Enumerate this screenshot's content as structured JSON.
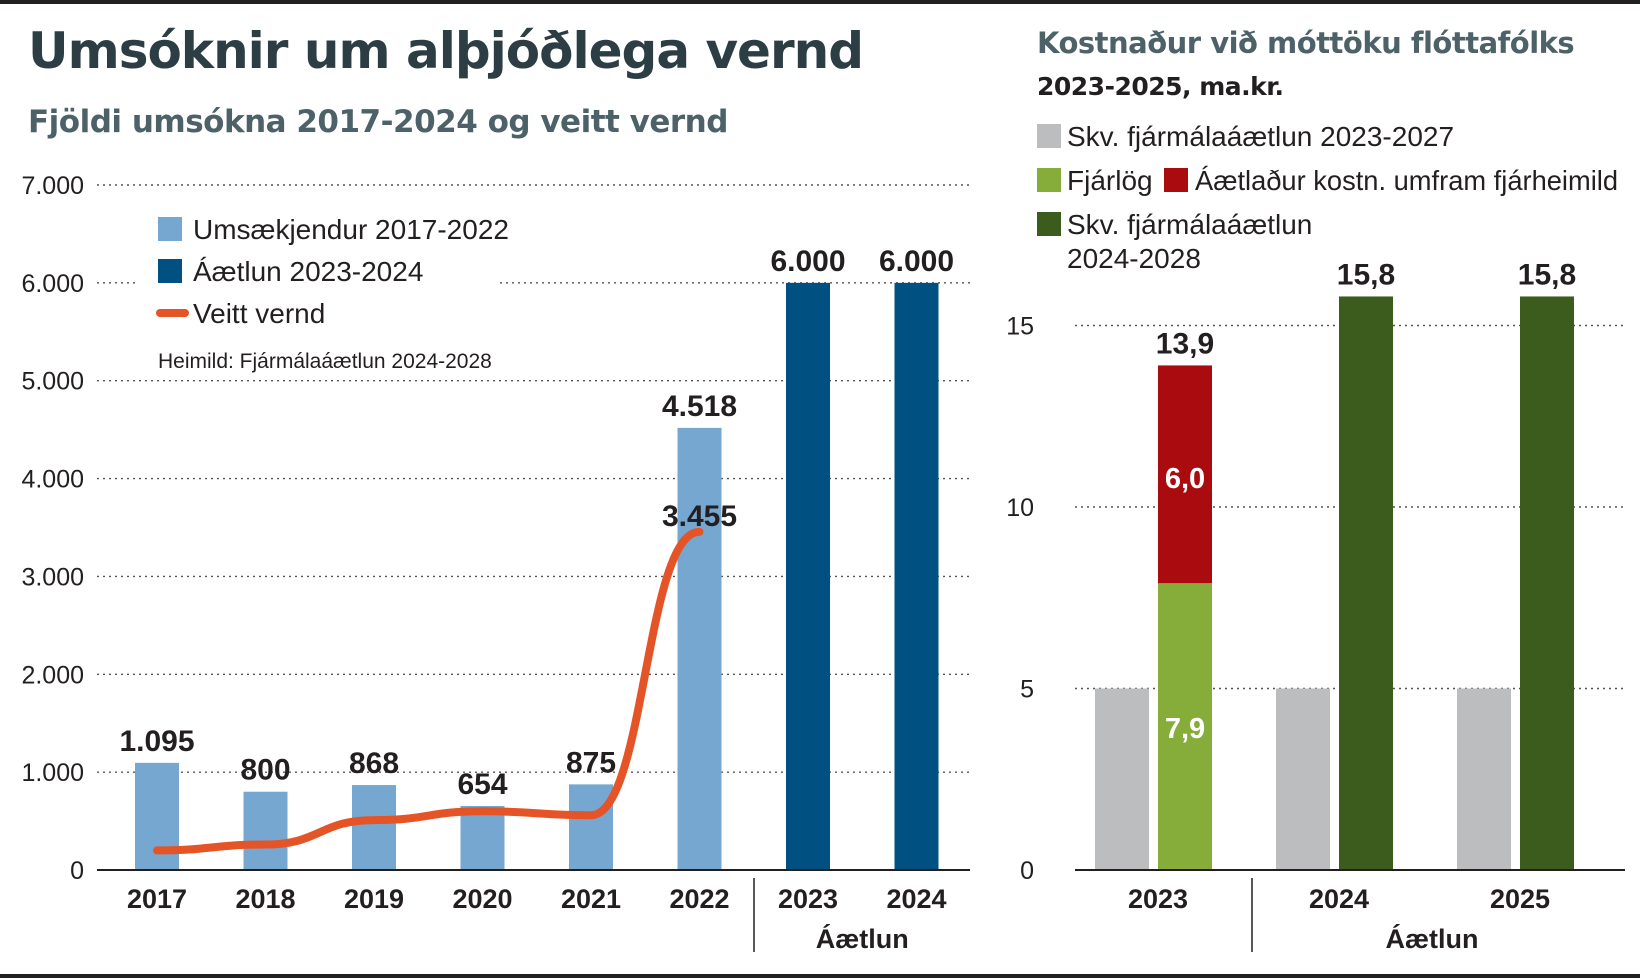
{
  "left": {
    "title": "Umsóknir um alþjóðlega vernd",
    "subtitle": "Fjöldi umsókna 2017-2024 og veitt vernd",
    "source": "Heimild: Fjármálaáætlun 2024-2028",
    "plan_label": "Áætlun"
  },
  "right": {
    "title": "Kostnaður við móttöku flóttafólks",
    "subtitle": "2023-2025, ma.kr.",
    "plan_label": "Áætlun"
  },
  "colors": {
    "light_blue": "#76a7d1",
    "dark_blue": "#005181",
    "orange_line": "#e55427",
    "gray": "#bcbdbf",
    "light_green": "#86ad3a",
    "red": "#a90b0e",
    "dark_green": "#3b5c1c",
    "text": "#231f20"
  },
  "chart_data": [
    {
      "type": "bar",
      "categories": [
        "2017",
        "2018",
        "2019",
        "2020",
        "2021",
        "2022",
        "2023",
        "2024"
      ],
      "ylim": [
        0,
        7000
      ],
      "yticks": [
        "0",
        "1.000",
        "2.000",
        "3.000",
        "4.000",
        "5.000",
        "6.000",
        "7.000"
      ],
      "grid": true,
      "legend": "top-left",
      "series": [
        {
          "name": "Umsækjendur 2017-2022",
          "kind": "bar",
          "values": [
            1095,
            800,
            868,
            654,
            875,
            4518,
            null,
            null
          ],
          "labels": [
            "1.095",
            "800",
            "868",
            "654",
            "875",
            "4.518",
            "",
            ""
          ]
        },
        {
          "name": "Áætlun 2023-2024",
          "kind": "bar",
          "values": [
            null,
            null,
            null,
            null,
            null,
            null,
            6000,
            6000
          ],
          "labels": [
            "",
            "",
            "",
            "",
            "",
            "",
            "6.000",
            "6.000"
          ]
        },
        {
          "name": "Veitt vernd",
          "kind": "line",
          "values": [
            200,
            260,
            510,
            600,
            560,
            3455,
            null,
            null
          ],
          "labels": [
            "",
            "",
            "",
            "",
            "",
            "3.455",
            "",
            ""
          ]
        }
      ]
    },
    {
      "type": "bar",
      "categories": [
        "2023",
        "2024",
        "2025"
      ],
      "ylim": [
        0,
        19
      ],
      "yticks": [
        "0",
        "5",
        "10",
        "15"
      ],
      "grid": true,
      "legend": "top",
      "series": [
        {
          "name": "Skv. fjármálaáætlun 2023-2027",
          "kind": "bar",
          "group": 0,
          "values": [
            5,
            5,
            5
          ]
        },
        {
          "name": "Fjárlög",
          "kind": "stack",
          "group": 1,
          "values": [
            7.9,
            null,
            null
          ],
          "labels": [
            "7,9",
            "",
            ""
          ]
        },
        {
          "name": "Áætlaður kostn. umfram fjárheimild",
          "kind": "stack",
          "group": 1,
          "values": [
            6.0,
            null,
            null
          ],
          "labels": [
            "6,0",
            "",
            ""
          ]
        },
        {
          "name": "Skv. fjármálaáætlun\n2024-2028",
          "kind": "stack",
          "group": 1,
          "values": [
            null,
            15.8,
            15.8
          ],
          "labels": [
            "",
            "15,8",
            "15,8"
          ]
        }
      ],
      "totals": [
        "13,9",
        "15,8",
        "15,8"
      ]
    }
  ]
}
